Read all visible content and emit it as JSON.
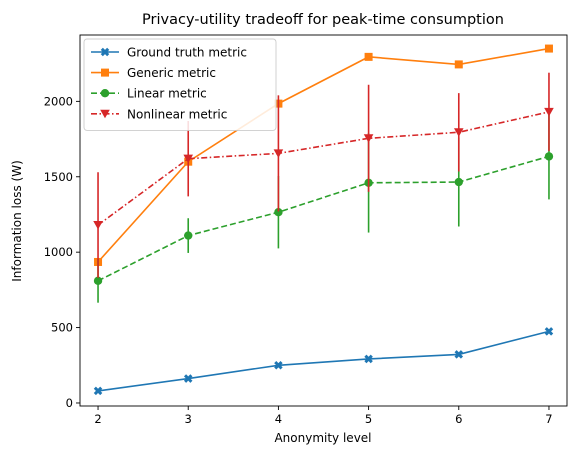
{
  "chart_data": {
    "type": "line",
    "title": "Privacy-utility tradeoff for peak-time consumption",
    "xlabel": "Anonymity level",
    "ylabel": "Information loss (W)",
    "x": [
      2,
      3,
      4,
      5,
      6,
      7
    ],
    "xlim": [
      1.8,
      7.2
    ],
    "ylim": [
      -20,
      2440
    ],
    "xticks": [
      2,
      3,
      4,
      5,
      6,
      7
    ],
    "yticks": [
      0,
      500,
      1000,
      1500,
      2000
    ],
    "legend_position": "upper-left",
    "series": [
      {
        "name": "Ground truth metric",
        "color": "#1f77b4",
        "marker": "x-cross",
        "linestyle": "solid",
        "values": [
          80,
          162,
          250,
          292,
          322,
          475
        ]
      },
      {
        "name": "Generic metric",
        "color": "#ff7f0e",
        "marker": "square",
        "linestyle": "solid",
        "values": [
          935,
          1600,
          1985,
          2295,
          2245,
          2350
        ]
      },
      {
        "name": "Linear metric",
        "color": "#2ca02c",
        "marker": "circle",
        "linestyle": "dashed",
        "values": [
          810,
          1110,
          1265,
          1460,
          1465,
          1635
        ],
        "errors": [
          145,
          115,
          240,
          330,
          295,
          285
        ]
      },
      {
        "name": "Nonlinear metric",
        "color": "#d62728",
        "marker": "triangle-down",
        "linestyle": "dashdot",
        "values": [
          1180,
          1620,
          1655,
          1755,
          1795,
          1930
        ],
        "errors": [
          350,
          250,
          385,
          355,
          260,
          260
        ]
      }
    ]
  }
}
